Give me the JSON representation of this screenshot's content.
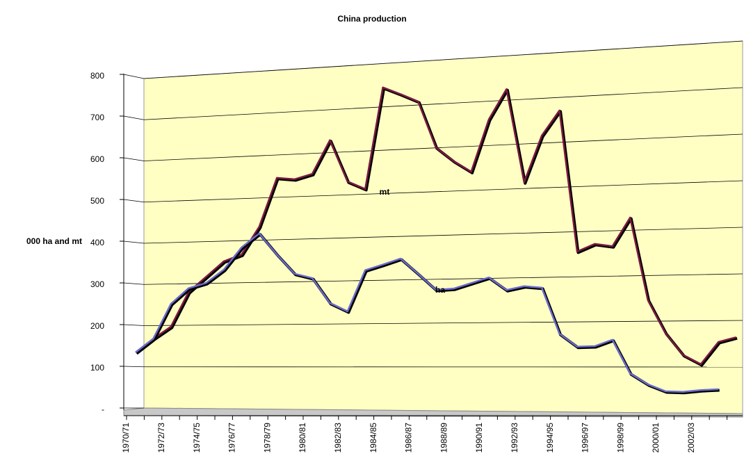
{
  "chart_data": {
    "type": "line",
    "title": "China production",
    "y_label": "000 ha and mt",
    "categories": [
      "1970/71",
      null,
      "1972/73",
      null,
      "1974/75",
      null,
      "1976/77",
      null,
      "1978/79",
      null,
      "1980/81",
      null,
      "1982/83",
      null,
      "1984/85",
      null,
      "1986/87",
      null,
      "1988/89",
      null,
      "1990/91",
      null,
      "1992/93",
      null,
      "1994/95",
      null,
      "1996/97",
      null,
      "1998/99",
      null,
      "2000/01",
      null,
      "2002/03",
      null,
      null
    ],
    "series": [
      {
        "name": "mt",
        "color": "#7a1a40",
        "values": [
          135,
          168,
          197,
          280,
          316,
          352,
          367,
          432,
          546,
          541,
          552,
          629,
          531,
          512,
          745,
          727,
          708,
          601,
          568,
          542,
          659,
          725,
          514,
          617,
          671,
          356,
          372,
          366,
          428,
          247,
          174,
          126,
          106,
          154,
          164
        ]
      },
      {
        "name": "ha",
        "color": "#6a6acc",
        "values": [
          135,
          168,
          252,
          289,
          301,
          332,
          384,
          416,
          365,
          319,
          308,
          249,
          229,
          324,
          336,
          349,
          313,
          276,
          278,
          290,
          302,
          273,
          281,
          277,
          174,
          145,
          146,
          160,
          86,
          62,
          47,
          46,
          50,
          52,
          null
        ]
      }
    ],
    "ylim": [
      0,
      800
    ],
    "yticks": [
      {
        "value": 0,
        "label": "-"
      },
      100,
      200,
      300,
      400,
      500,
      600,
      700,
      800
    ],
    "grid": true
  }
}
